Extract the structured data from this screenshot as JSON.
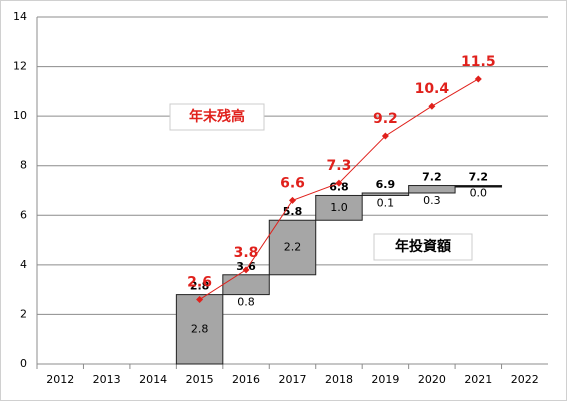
{
  "chart_data": {
    "type": "waterfall-line",
    "categories": [
      "2012",
      "2013",
      "2014",
      "2015",
      "2016",
      "2017",
      "2018",
      "2019",
      "2020",
      "2021",
      "2022"
    ],
    "series": [
      {
        "name": "年投資額",
        "color": "#a6a6a6",
        "values": [
          null,
          null,
          null,
          2.8,
          0.8,
          2.2,
          1.0,
          0.1,
          0.3,
          0.0,
          null
        ],
        "value_labels": [
          null,
          null,
          null,
          "2.8",
          "0.8",
          "2.2",
          "1.0",
          "0.1",
          "0.3",
          "0.0",
          null
        ]
      },
      {
        "name": "年末残高",
        "color": "#e0211c",
        "values": [
          null,
          null,
          null,
          2.6,
          3.8,
          6.6,
          7.3,
          9.2,
          10.4,
          11.5,
          null
        ]
      }
    ],
    "totals": [
      null,
      null,
      null,
      2.8,
      3.6,
      5.8,
      6.8,
      6.9,
      7.2,
      7.2,
      null
    ],
    "totals_labels": [
      null,
      null,
      null,
      "2.8",
      "3.6",
      "5.8",
      "6.8",
      "6.9",
      "7.2",
      "7.2",
      null
    ],
    "ylim": [
      0,
      14
    ],
    "yticks": [
      0,
      2,
      4,
      6,
      8,
      10,
      12,
      14
    ],
    "grid": true
  }
}
